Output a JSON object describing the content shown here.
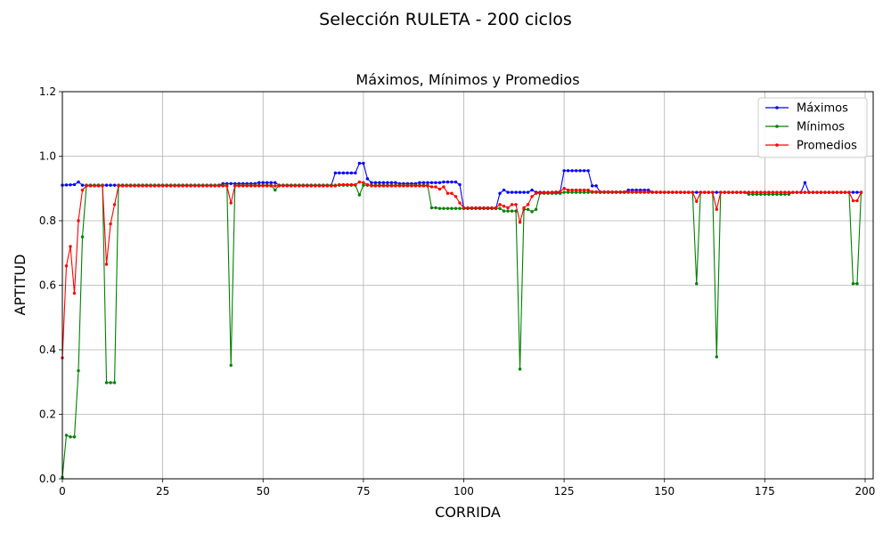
{
  "figure": {
    "suptitle": "Selección RULETA - 200 ciclos"
  },
  "chart_data": {
    "type": "line",
    "title": "Máximos, Mínimos y Promedios",
    "xlabel": "CORRIDA",
    "ylabel": "APTITUD",
    "xlim": [
      0,
      202
    ],
    "ylim": [
      0.0,
      1.2
    ],
    "xticks": [
      0,
      25,
      50,
      75,
      100,
      125,
      150,
      175,
      200
    ],
    "yticks": [
      0.0,
      0.2,
      0.4,
      0.6,
      0.8,
      1.0,
      1.2
    ],
    "xtick_labels": [
      "0",
      "25",
      "50",
      "75",
      "100",
      "125",
      "150",
      "175",
      "200"
    ],
    "ytick_labels": [
      "0.0",
      "0.2",
      "0.4",
      "0.6",
      "0.8",
      "1.0",
      "1.2"
    ],
    "grid": true,
    "legend_position": "top-right",
    "series": [
      {
        "name": "Máximos",
        "color": "#0000ff",
        "segments": [
          [
            0,
            0.91
          ],
          [
            3,
            0.912
          ],
          [
            4,
            0.92
          ],
          [
            5,
            0.91
          ],
          [
            39,
            0.91
          ],
          [
            40,
            0.915
          ],
          [
            48,
            0.915
          ],
          [
            49,
            0.918
          ],
          [
            53,
            0.918
          ],
          [
            54,
            0.91
          ],
          [
            67,
            0.91
          ],
          [
            68,
            0.948
          ],
          [
            73,
            0.948
          ],
          [
            74,
            0.978
          ],
          [
            75,
            0.978
          ],
          [
            76,
            0.93
          ],
          [
            77,
            0.918
          ],
          [
            83,
            0.918
          ],
          [
            84,
            0.915
          ],
          [
            88,
            0.915
          ],
          [
            89,
            0.918
          ],
          [
            94,
            0.918
          ],
          [
            95,
            0.92
          ],
          [
            98,
            0.92
          ],
          [
            99,
            0.912
          ],
          [
            100,
            0.838
          ],
          [
            108,
            0.838
          ],
          [
            109,
            0.885
          ],
          [
            110,
            0.895
          ],
          [
            111,
            0.888
          ],
          [
            116,
            0.888
          ],
          [
            117,
            0.895
          ],
          [
            118,
            0.888
          ],
          [
            124,
            0.888
          ],
          [
            125,
            0.955
          ],
          [
            131,
            0.955
          ],
          [
            132,
            0.908
          ],
          [
            133,
            0.908
          ],
          [
            134,
            0.888
          ],
          [
            140,
            0.888
          ],
          [
            141,
            0.895
          ],
          [
            146,
            0.895
          ],
          [
            147,
            0.888
          ],
          [
            184,
            0.888
          ],
          [
            185,
            0.918
          ],
          [
            186,
            0.888
          ],
          [
            199,
            0.888
          ]
        ]
      },
      {
        "name": "Mínimos",
        "color": "#008000",
        "segments": [
          [
            0,
            0.005
          ],
          [
            1,
            0.135
          ],
          [
            2,
            0.13
          ],
          [
            3,
            0.13
          ],
          [
            4,
            0.335
          ],
          [
            5,
            0.75
          ],
          [
            6,
            0.91
          ],
          [
            10,
            0.91
          ],
          [
            11,
            0.298
          ],
          [
            12,
            0.298
          ],
          [
            13,
            0.298
          ],
          [
            14,
            0.91
          ],
          [
            41,
            0.91
          ],
          [
            42,
            0.352
          ],
          [
            43,
            0.91
          ],
          [
            52,
            0.91
          ],
          [
            53,
            0.895
          ],
          [
            54,
            0.91
          ],
          [
            73,
            0.91
          ],
          [
            74,
            0.88
          ],
          [
            75,
            0.91
          ],
          [
            91,
            0.91
          ],
          [
            92,
            0.84
          ],
          [
            93,
            0.84
          ],
          [
            94,
            0.838
          ],
          [
            99,
            0.838
          ],
          [
            100,
            0.838
          ],
          [
            109,
            0.838
          ],
          [
            110,
            0.83
          ],
          [
            113,
            0.83
          ],
          [
            114,
            0.34
          ],
          [
            115,
            0.835
          ],
          [
            116,
            0.835
          ],
          [
            117,
            0.828
          ],
          [
            118,
            0.835
          ],
          [
            119,
            0.885
          ],
          [
            124,
            0.885
          ],
          [
            125,
            0.888
          ],
          [
            157,
            0.888
          ],
          [
            158,
            0.605
          ],
          [
            159,
            0.888
          ],
          [
            162,
            0.888
          ],
          [
            163,
            0.378
          ],
          [
            164,
            0.888
          ],
          [
            170,
            0.888
          ],
          [
            171,
            0.882
          ],
          [
            181,
            0.882
          ],
          [
            182,
            0.888
          ],
          [
            196,
            0.888
          ],
          [
            197,
            0.605
          ],
          [
            198,
            0.605
          ],
          [
            199,
            0.888
          ]
        ]
      },
      {
        "name": "Promedios",
        "color": "#ff0000",
        "segments": [
          [
            0,
            0.375
          ],
          [
            1,
            0.66
          ],
          [
            2,
            0.72
          ],
          [
            3,
            0.575
          ],
          [
            4,
            0.8
          ],
          [
            5,
            0.895
          ],
          [
            6,
            0.908
          ],
          [
            10,
            0.908
          ],
          [
            11,
            0.665
          ],
          [
            12,
            0.79
          ],
          [
            13,
            0.85
          ],
          [
            14,
            0.908
          ],
          [
            41,
            0.908
          ],
          [
            42,
            0.855
          ],
          [
            43,
            0.908
          ],
          [
            68,
            0.908
          ],
          [
            69,
            0.912
          ],
          [
            73,
            0.912
          ],
          [
            74,
            0.92
          ],
          [
            75,
            0.918
          ],
          [
            76,
            0.912
          ],
          [
            77,
            0.908
          ],
          [
            91,
            0.908
          ],
          [
            92,
            0.905
          ],
          [
            93,
            0.905
          ],
          [
            94,
            0.898
          ],
          [
            95,
            0.905
          ],
          [
            96,
            0.885
          ],
          [
            97,
            0.885
          ],
          [
            98,
            0.875
          ],
          [
            99,
            0.855
          ],
          [
            100,
            0.84
          ],
          [
            108,
            0.84
          ],
          [
            109,
            0.85
          ],
          [
            110,
            0.845
          ],
          [
            111,
            0.84
          ],
          [
            112,
            0.85
          ],
          [
            113,
            0.85
          ],
          [
            114,
            0.795
          ],
          [
            115,
            0.84
          ],
          [
            116,
            0.85
          ],
          [
            117,
            0.875
          ],
          [
            118,
            0.885
          ],
          [
            124,
            0.89
          ],
          [
            125,
            0.9
          ],
          [
            126,
            0.895
          ],
          [
            131,
            0.895
          ],
          [
            132,
            0.89
          ],
          [
            157,
            0.888
          ],
          [
            158,
            0.86
          ],
          [
            159,
            0.888
          ],
          [
            162,
            0.888
          ],
          [
            163,
            0.835
          ],
          [
            164,
            0.888
          ],
          [
            196,
            0.888
          ],
          [
            197,
            0.862
          ],
          [
            198,
            0.862
          ],
          [
            199,
            0.888
          ]
        ]
      }
    ]
  }
}
